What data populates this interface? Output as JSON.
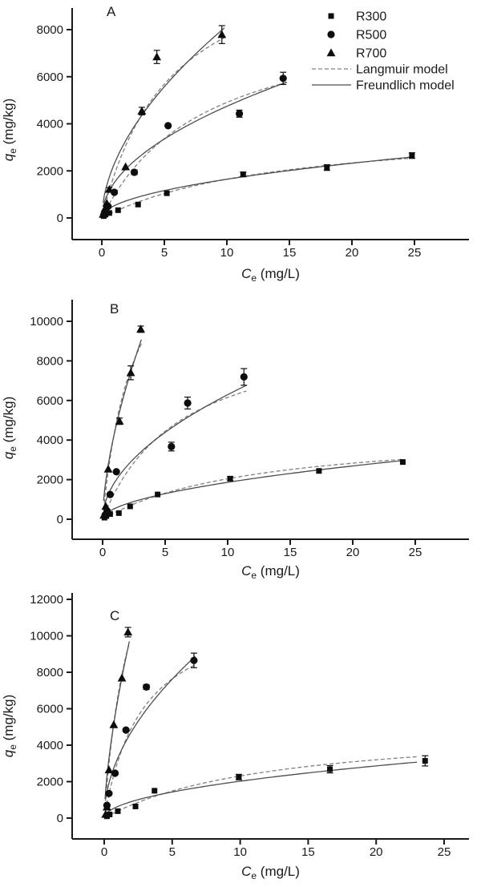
{
  "figure": {
    "x_axis_label": {
      "var": "C",
      "sub": "e",
      "unit": " (mg/L)"
    },
    "y_axis_label": {
      "var": "q",
      "sub": "e",
      "unit": " (mg/kg)"
    },
    "legend": {
      "items": [
        {
          "symbol": "square",
          "label": "R300"
        },
        {
          "symbol": "circle",
          "label": "R500"
        },
        {
          "symbol": "triangle",
          "label": "R700"
        },
        {
          "symbol": "dashed-line",
          "label": "Langmuir model"
        },
        {
          "symbol": "solid-line",
          "label": "Freundlich model"
        }
      ]
    },
    "colors": {
      "marker": "#0d0d0d",
      "axis": "#1a1a1a",
      "langmuir_line": "#808080",
      "freundlich_line": "#4d4d4d"
    }
  },
  "chart_data": [
    {
      "type": "scatter",
      "panel_label": "A",
      "xlabel": "Ce (mg/L)",
      "ylabel": "qe (mg/kg)",
      "xlim": [
        0,
        25
      ],
      "ylim": [
        0,
        8000
      ],
      "x_ticks": [
        0,
        5,
        10,
        15,
        20,
        25
      ],
      "y_ticks": [
        0,
        2000,
        4000,
        6000,
        8000
      ],
      "show_legend": true,
      "series": [
        {
          "name": "R300",
          "marker": "square",
          "points": [
            [
              0.15,
              80,
              0
            ],
            [
              0.3,
              150,
              0
            ],
            [
              0.6,
              210,
              0
            ],
            [
              1.3,
              330,
              0
            ],
            [
              2.9,
              570,
              0
            ],
            [
              5.2,
              1050,
              0
            ],
            [
              11.3,
              1850,
              100
            ],
            [
              18.0,
              2140,
              120
            ],
            [
              24.8,
              2650,
              120
            ]
          ],
          "langmuir": {
            "qm": 4000,
            "b": 0.07
          },
          "freundlich": {
            "k": 520,
            "n_exp": 0.5
          },
          "curve_range": [
            0.15,
            24.9
          ]
        },
        {
          "name": "R500",
          "marker": "circle",
          "points": [
            [
              0.15,
              120,
              0
            ],
            [
              0.3,
              260,
              0
            ],
            [
              0.5,
              490,
              0
            ],
            [
              1.0,
              1090,
              0
            ],
            [
              2.6,
              1940,
              100
            ],
            [
              5.3,
              3920,
              0
            ],
            [
              11.0,
              4430,
              150
            ],
            [
              14.5,
              5930,
              260
            ]
          ],
          "langmuir": {
            "qm": 9000,
            "b": 0.12
          },
          "freundlich": {
            "k": 1500,
            "n_exp": 0.5
          },
          "curve_range": [
            0.1,
            14.8
          ]
        },
        {
          "name": "R700",
          "marker": "triangle",
          "points": [
            [
              0.1,
              150,
              0
            ],
            [
              0.25,
              390,
              0
            ],
            [
              0.4,
              620,
              0
            ],
            [
              0.6,
              1210,
              80
            ],
            [
              1.9,
              2170,
              0
            ],
            [
              3.2,
              4540,
              160
            ],
            [
              4.4,
              6840,
              280
            ],
            [
              9.6,
              7790,
              380
            ]
          ],
          "langmuir": {
            "qm": 12000,
            "b": 0.18
          },
          "freundlich": {
            "k": 2300,
            "n_exp": 0.55
          },
          "curve_range": [
            0.1,
            9.8
          ]
        }
      ]
    },
    {
      "type": "scatter",
      "panel_label": "B",
      "xlabel": "Ce (mg/L)",
      "ylabel": "qe (mg/kg)",
      "xlim": [
        0,
        25
      ],
      "ylim": [
        0,
        10000
      ],
      "x_ticks": [
        0,
        5,
        10,
        15,
        20,
        25
      ],
      "y_ticks": [
        0,
        2000,
        4000,
        6000,
        8000,
        10000
      ],
      "show_legend": false,
      "series": [
        {
          "name": "R300",
          "marker": "square",
          "points": [
            [
              0.15,
              80,
              0
            ],
            [
              0.3,
              160,
              0
            ],
            [
              0.6,
              260,
              0
            ],
            [
              1.3,
              310,
              0
            ],
            [
              2.2,
              650,
              0
            ],
            [
              4.4,
              1250,
              0
            ],
            [
              10.2,
              2050,
              100
            ],
            [
              17.3,
              2440,
              0
            ],
            [
              24.0,
              2890,
              0
            ]
          ],
          "langmuir": {
            "qm": 4600,
            "b": 0.08
          },
          "freundlich": {
            "k": 550,
            "n_exp": 0.53
          },
          "curve_range": [
            0.12,
            24.1
          ]
        },
        {
          "name": "R500",
          "marker": "circle",
          "points": [
            [
              0.2,
              210,
              0
            ],
            [
              0.35,
              420,
              0
            ],
            [
              0.6,
              1250,
              0
            ],
            [
              1.1,
              2400,
              0
            ],
            [
              5.5,
              3670,
              220
            ],
            [
              6.8,
              5870,
              300
            ],
            [
              11.3,
              7190,
              420
            ]
          ],
          "langmuir": {
            "qm": 10000,
            "b": 0.16
          },
          "freundlich": {
            "k": 1900,
            "n_exp": 0.52
          },
          "curve_range": [
            0.15,
            11.5
          ]
        },
        {
          "name": "R700",
          "marker": "triangle",
          "points": [
            [
              0.1,
              200,
              0
            ],
            [
              0.25,
              650,
              0
            ],
            [
              0.45,
              2530,
              0
            ],
            [
              1.35,
              4950,
              160
            ],
            [
              2.25,
              7400,
              350
            ],
            [
              3.05,
              9600,
              160
            ]
          ],
          "langmuir": {
            "qm": 16000,
            "b": 0.4
          },
          "freundlich": {
            "k": 4500,
            "n_exp": 0.62
          },
          "curve_range": [
            0.08,
            3.1
          ]
        }
      ]
    },
    {
      "type": "scatter",
      "panel_label": "C",
      "xlabel": "Ce (mg/L)",
      "ylabel": "qe (mg/kg)",
      "xlim": [
        0,
        25
      ],
      "ylim": [
        0,
        12000
      ],
      "x_ticks": [
        0,
        5,
        10,
        15,
        20,
        25
      ],
      "y_ticks": [
        0,
        2000,
        4000,
        6000,
        8000,
        10000,
        12000
      ],
      "show_legend": false,
      "series": [
        {
          "name": "R300",
          "marker": "square",
          "points": [
            [
              0.2,
              100,
              0
            ],
            [
              0.4,
              200,
              0
            ],
            [
              1.0,
              380,
              0
            ],
            [
              2.3,
              640,
              0
            ],
            [
              3.7,
              1500,
              0
            ],
            [
              9.9,
              2250,
              150
            ],
            [
              16.6,
              2680,
              200
            ],
            [
              23.6,
              3140,
              280
            ]
          ],
          "langmuir": {
            "qm": 5200,
            "b": 0.08
          },
          "freundlich": {
            "k": 640,
            "n_exp": 0.5
          },
          "curve_range": [
            0.15,
            23.0
          ]
        },
        {
          "name": "R500",
          "marker": "circle",
          "points": [
            [
              0.2,
              700,
              0
            ],
            [
              0.35,
              1350,
              0
            ],
            [
              0.8,
              2460,
              0
            ],
            [
              1.6,
              4830,
              0
            ],
            [
              3.1,
              7190,
              130
            ],
            [
              6.6,
              8650,
              400
            ]
          ],
          "langmuir": {
            "qm": 12000,
            "b": 0.35
          },
          "freundlich": {
            "k": 3300,
            "n_exp": 0.52
          },
          "curve_range": [
            0.1,
            6.7
          ]
        },
        {
          "name": "R700",
          "marker": "triangle",
          "points": [
            [
              0.1,
              200,
              0
            ],
            [
              0.2,
              600,
              0
            ],
            [
              0.35,
              2640,
              0
            ],
            [
              0.7,
              5120,
              0
            ],
            [
              1.3,
              7680,
              0
            ],
            [
              1.75,
              10200,
              260
            ]
          ],
          "langmuir": {
            "qm": 20000,
            "b": 0.5
          },
          "freundlich": {
            "k": 6500,
            "n_exp": 0.65
          },
          "curve_range": [
            0.06,
            1.85
          ]
        }
      ]
    }
  ]
}
